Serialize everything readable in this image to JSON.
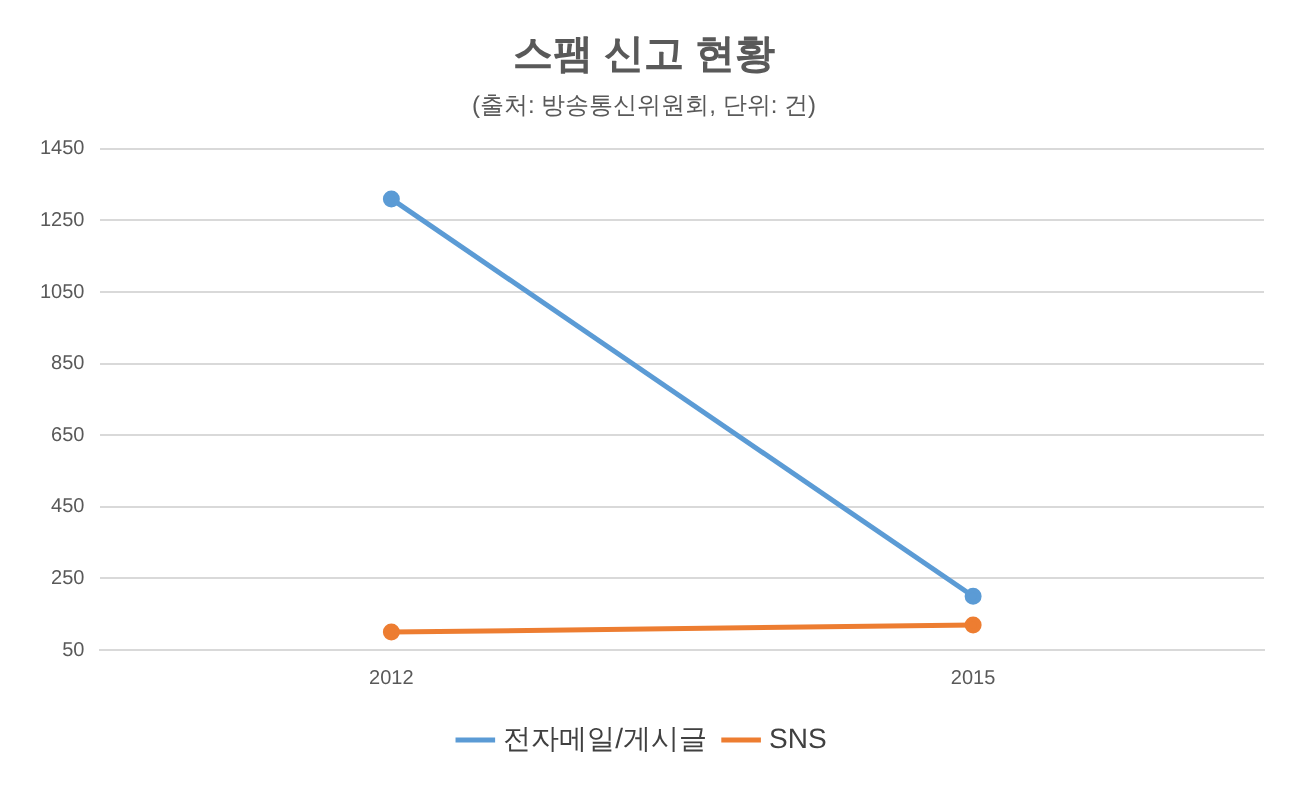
{
  "chart_data": {
    "type": "line",
    "title": "스팸 신고 현황",
    "subtitle": "(출처: 방송통신위원회, 단위: 건)",
    "categories": [
      "2012",
      "2015"
    ],
    "series": [
      {
        "name": "전자메일/게시글",
        "color": "#5b9bd5",
        "values": [
          1310,
          200
        ]
      },
      {
        "name": "SNS",
        "color": "#ed7d31",
        "values": [
          100,
          120
        ]
      }
    ],
    "ylim": [
      50,
      1450
    ],
    "yticks": [
      50,
      250,
      450,
      650,
      850,
      1050,
      1250,
      1450
    ],
    "grid": "y",
    "legend": "bottom",
    "marker": "circle",
    "line_style": "solid"
  }
}
